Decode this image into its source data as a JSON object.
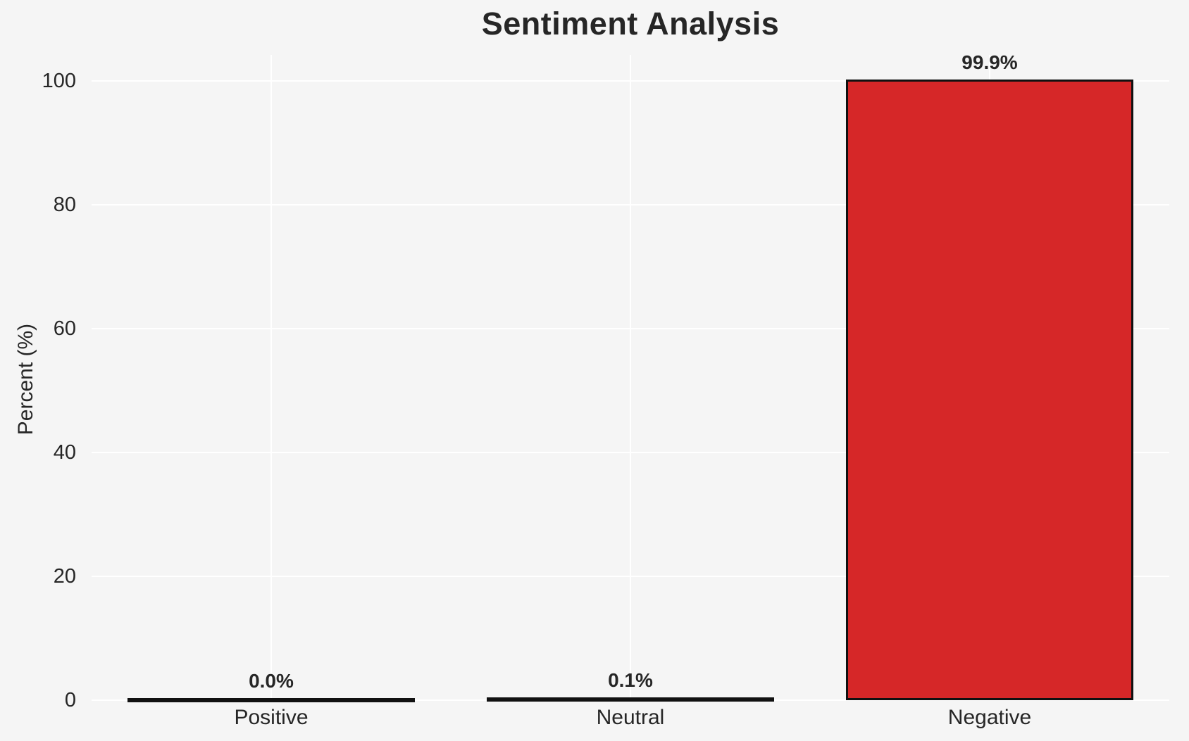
{
  "chart_data": {
    "type": "bar",
    "title": "Sentiment Analysis",
    "xlabel": "",
    "ylabel": "Percent (%)",
    "categories": [
      "Positive",
      "Neutral",
      "Negative"
    ],
    "values": [
      0.0,
      0.1,
      99.9
    ],
    "value_labels": [
      "0.0%",
      "0.1%",
      "99.9%"
    ],
    "yticks": [
      0,
      20,
      40,
      60,
      80,
      100
    ],
    "ylim": [
      0,
      104.2
    ],
    "grid": true,
    "legend_position": "none",
    "colors": {
      "bar_fill": "#d62728",
      "bar_edge": "#111111",
      "background": "#f5f5f5",
      "gridline": "#ffffff",
      "text": "#262626"
    }
  }
}
